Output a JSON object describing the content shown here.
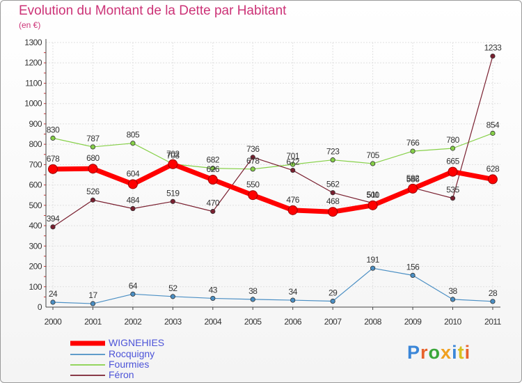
{
  "title": "Evolution du Montant de la Dette par Habitant",
  "subtitle": "(en €)",
  "logo": {
    "text": "Proxiti",
    "letter_colors": [
      "#3a86d8",
      "#e8622c",
      "#3aa63a",
      "#f0a020",
      "#3a86d8",
      "#d8c020",
      "#e8622c"
    ]
  },
  "chart_data": {
    "type": "line",
    "title": "Evolution du Montant de la Dette par Habitant",
    "subtitle": "(en €)",
    "x": [
      "2000",
      "2001",
      "2002",
      "2003",
      "2004",
      "2005",
      "2006",
      "2007",
      "2008",
      "2009",
      "2010",
      "2011"
    ],
    "ylim": [
      0,
      1300
    ],
    "yticks": [
      0,
      100,
      200,
      300,
      400,
      500,
      600,
      700,
      800,
      900,
      1000,
      1100,
      1200,
      1300
    ],
    "grid": true,
    "legend_position": "bottom-left",
    "series": [
      {
        "name": "WIGNEHIES",
        "color": "#ff0000",
        "values": [
          678,
          680,
          604,
          702,
          626,
          550,
          476,
          468,
          500,
          582,
          665,
          628
        ]
      },
      {
        "name": "Rocquigny",
        "color": "#4b8fc4",
        "values": [
          24,
          17,
          64,
          52,
          43,
          38,
          34,
          29,
          191,
          156,
          38,
          28
        ]
      },
      {
        "name": "Fourmies",
        "color": "#86d048",
        "values": [
          830,
          787,
          805,
          703,
          682,
          678,
          701,
          723,
          705,
          766,
          780,
          854
        ]
      },
      {
        "name": "Féron",
        "color": "#7a2030",
        "values": [
          394,
          526,
          484,
          519,
          470,
          736,
          672,
          562,
          511,
          586,
          535,
          1233
        ]
      }
    ]
  }
}
